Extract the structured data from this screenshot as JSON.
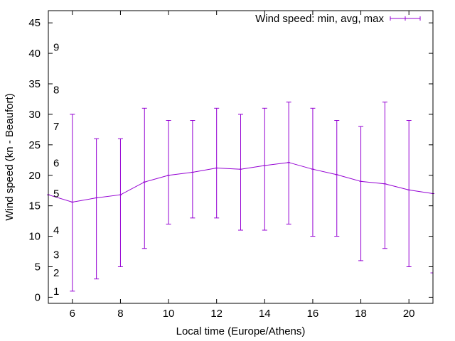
{
  "chart_data": {
    "type": "line",
    "title": "",
    "xlabel": "Local time (Europe/Athens)",
    "ylabel": "Wind speed (kn - Beaufort)",
    "xlim": [
      5,
      21
    ],
    "ylim": [
      -1,
      47
    ],
    "x_ticks": [
      6,
      8,
      10,
      12,
      14,
      16,
      18,
      20
    ],
    "y_ticks": [
      0,
      5,
      10,
      15,
      20,
      25,
      30,
      35,
      40,
      45
    ],
    "beaufort_labels": [
      {
        "label": "1",
        "kn": 1
      },
      {
        "label": "2",
        "kn": 4
      },
      {
        "label": "3",
        "kn": 7
      },
      {
        "label": "4",
        "kn": 11
      },
      {
        "label": "5",
        "kn": 17
      },
      {
        "label": "6",
        "kn": 22
      },
      {
        "label": "7",
        "kn": 28
      },
      {
        "label": "8",
        "kn": 34
      },
      {
        "label": "9",
        "kn": 41
      }
    ],
    "grid": false,
    "legend": {
      "position": "top-right",
      "label": "Wind speed: min, avg, max"
    },
    "series": [
      {
        "name": "Wind speed: min, avg, max",
        "color": "#9400d3",
        "x": [
          5,
          6,
          7,
          8,
          9,
          10,
          11,
          12,
          13,
          14,
          15,
          16,
          17,
          18,
          19,
          20,
          21
        ],
        "avg": [
          16.8,
          15.6,
          16.3,
          16.8,
          18.9,
          20.0,
          20.5,
          21.2,
          21.0,
          21.6,
          22.1,
          21.0,
          20.1,
          19.0,
          18.6,
          17.6,
          17.0
        ],
        "min": [
          null,
          1,
          3,
          5,
          8,
          12,
          13,
          13,
          11,
          11,
          12,
          10,
          10,
          6,
          8,
          5,
          4
        ],
        "max": [
          null,
          30,
          26,
          26,
          31,
          29,
          29,
          31,
          30,
          31,
          32,
          31,
          29,
          28,
          32,
          29,
          null
        ]
      }
    ]
  }
}
